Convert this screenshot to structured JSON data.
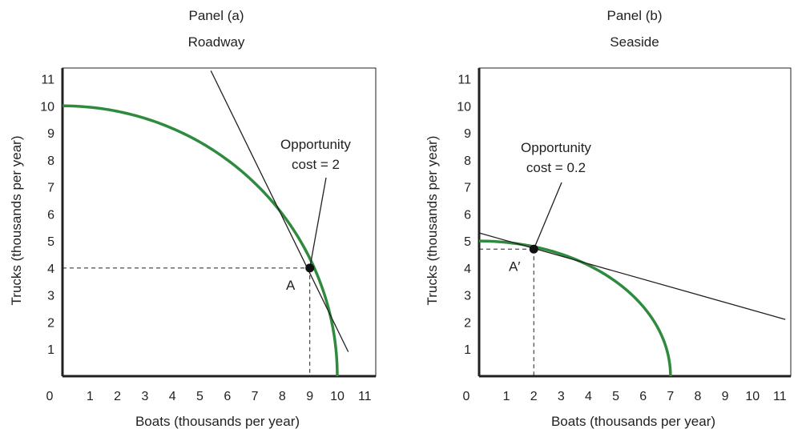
{
  "chart_data": [
    {
      "type": "line",
      "panel_label": "Panel (a)",
      "title": "Roadway",
      "xlabel": "Boats (thousands per year)",
      "ylabel": "Trucks (thousands per year)",
      "xlim": [
        0,
        11.4
      ],
      "ylim": [
        0,
        11.4
      ],
      "x_ticks": [
        "0",
        "1",
        "2",
        "3",
        "4",
        "5",
        "6",
        "7",
        "8",
        "9",
        "10",
        "11"
      ],
      "y_ticks": [
        "1",
        "2",
        "3",
        "4",
        "5",
        "6",
        "7",
        "8",
        "9",
        "10",
        "11"
      ],
      "grid": false,
      "curve": {
        "type": "ellipse",
        "x_intercept": 10,
        "y_intercept": 10,
        "color": "#2e8b3e"
      },
      "tangent_line": {
        "points": [
          [
            5.4,
            11.3
          ],
          [
            10.4,
            0.9
          ]
        ],
        "color": "#231f20"
      },
      "point": {
        "label": "A",
        "x": 9,
        "y": 4
      },
      "annotation": {
        "lines": [
          "Opportunity",
          "cost = 2"
        ]
      }
    },
    {
      "type": "line",
      "panel_label": "Panel (b)",
      "title": "Seaside",
      "xlabel": "Boats (thousands per year)",
      "ylabel": "Trucks (thousands per year)",
      "xlim": [
        0,
        11.4
      ],
      "ylim": [
        0,
        11.4
      ],
      "x_ticks": [
        "0",
        "1",
        "2",
        "3",
        "4",
        "5",
        "6",
        "7",
        "8",
        "9",
        "10",
        "11"
      ],
      "y_ticks": [
        "1",
        "2",
        "3",
        "4",
        "5",
        "6",
        "7",
        "8",
        "9",
        "10",
        "11"
      ],
      "grid": false,
      "curve": {
        "type": "ellipse",
        "x_intercept": 7,
        "y_intercept": 5,
        "color": "#2e8b3e"
      },
      "tangent_line": {
        "points": [
          [
            0,
            5.3
          ],
          [
            11.2,
            2.1
          ]
        ],
        "color": "#231f20"
      },
      "point": {
        "label": "A′",
        "x": 2,
        "y": 4.7
      },
      "annotation": {
        "lines": [
          "Opportunity",
          "cost = 0.2"
        ]
      }
    }
  ]
}
